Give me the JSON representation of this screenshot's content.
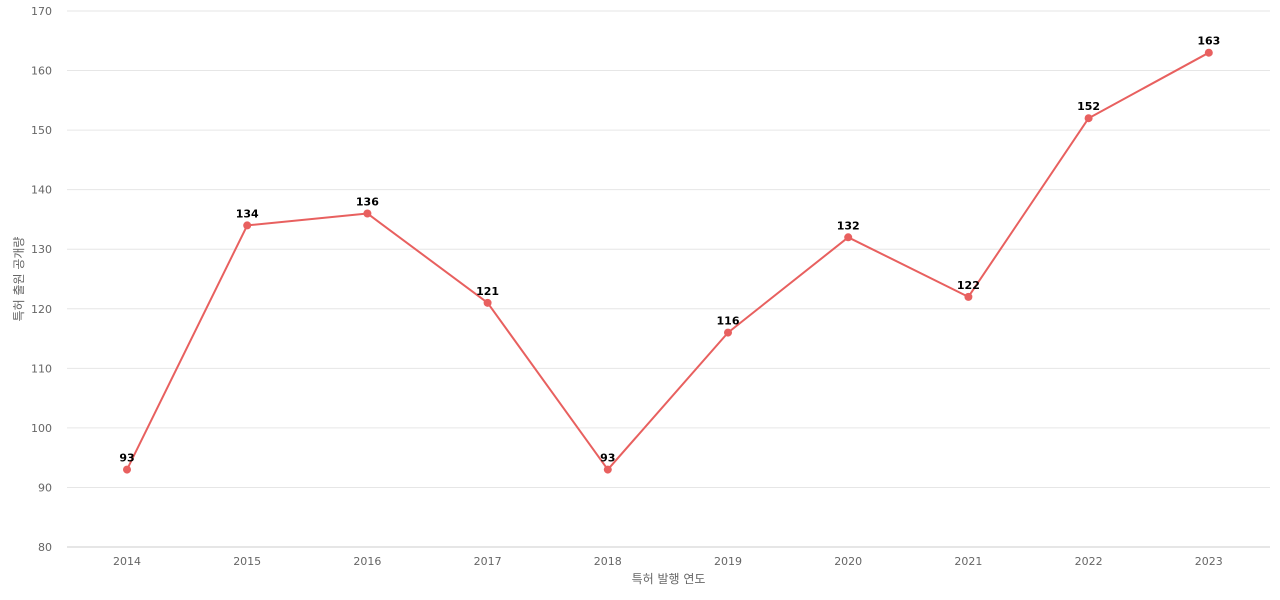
{
  "chart_data": {
    "type": "line",
    "title": "",
    "xlabel": "특허 발행 연도",
    "ylabel": "특허 출원 공개량",
    "categories": [
      "2014",
      "2015",
      "2016",
      "2017",
      "2018",
      "2019",
      "2020",
      "2021",
      "2022",
      "2023"
    ],
    "series": [
      {
        "values": [
          93,
          134,
          136,
          121,
          93,
          116,
          132,
          122,
          152,
          163
        ]
      }
    ],
    "ylim": [
      80,
      170
    ],
    "yticks": [
      80,
      90,
      100,
      110,
      120,
      130,
      140,
      150,
      160,
      170
    ],
    "grid": true,
    "legend": "none",
    "colors": {
      "series": "#e8605f",
      "grid": "#e6e6e6",
      "axis_text": "#666666",
      "data_label": "#000000"
    }
  }
}
